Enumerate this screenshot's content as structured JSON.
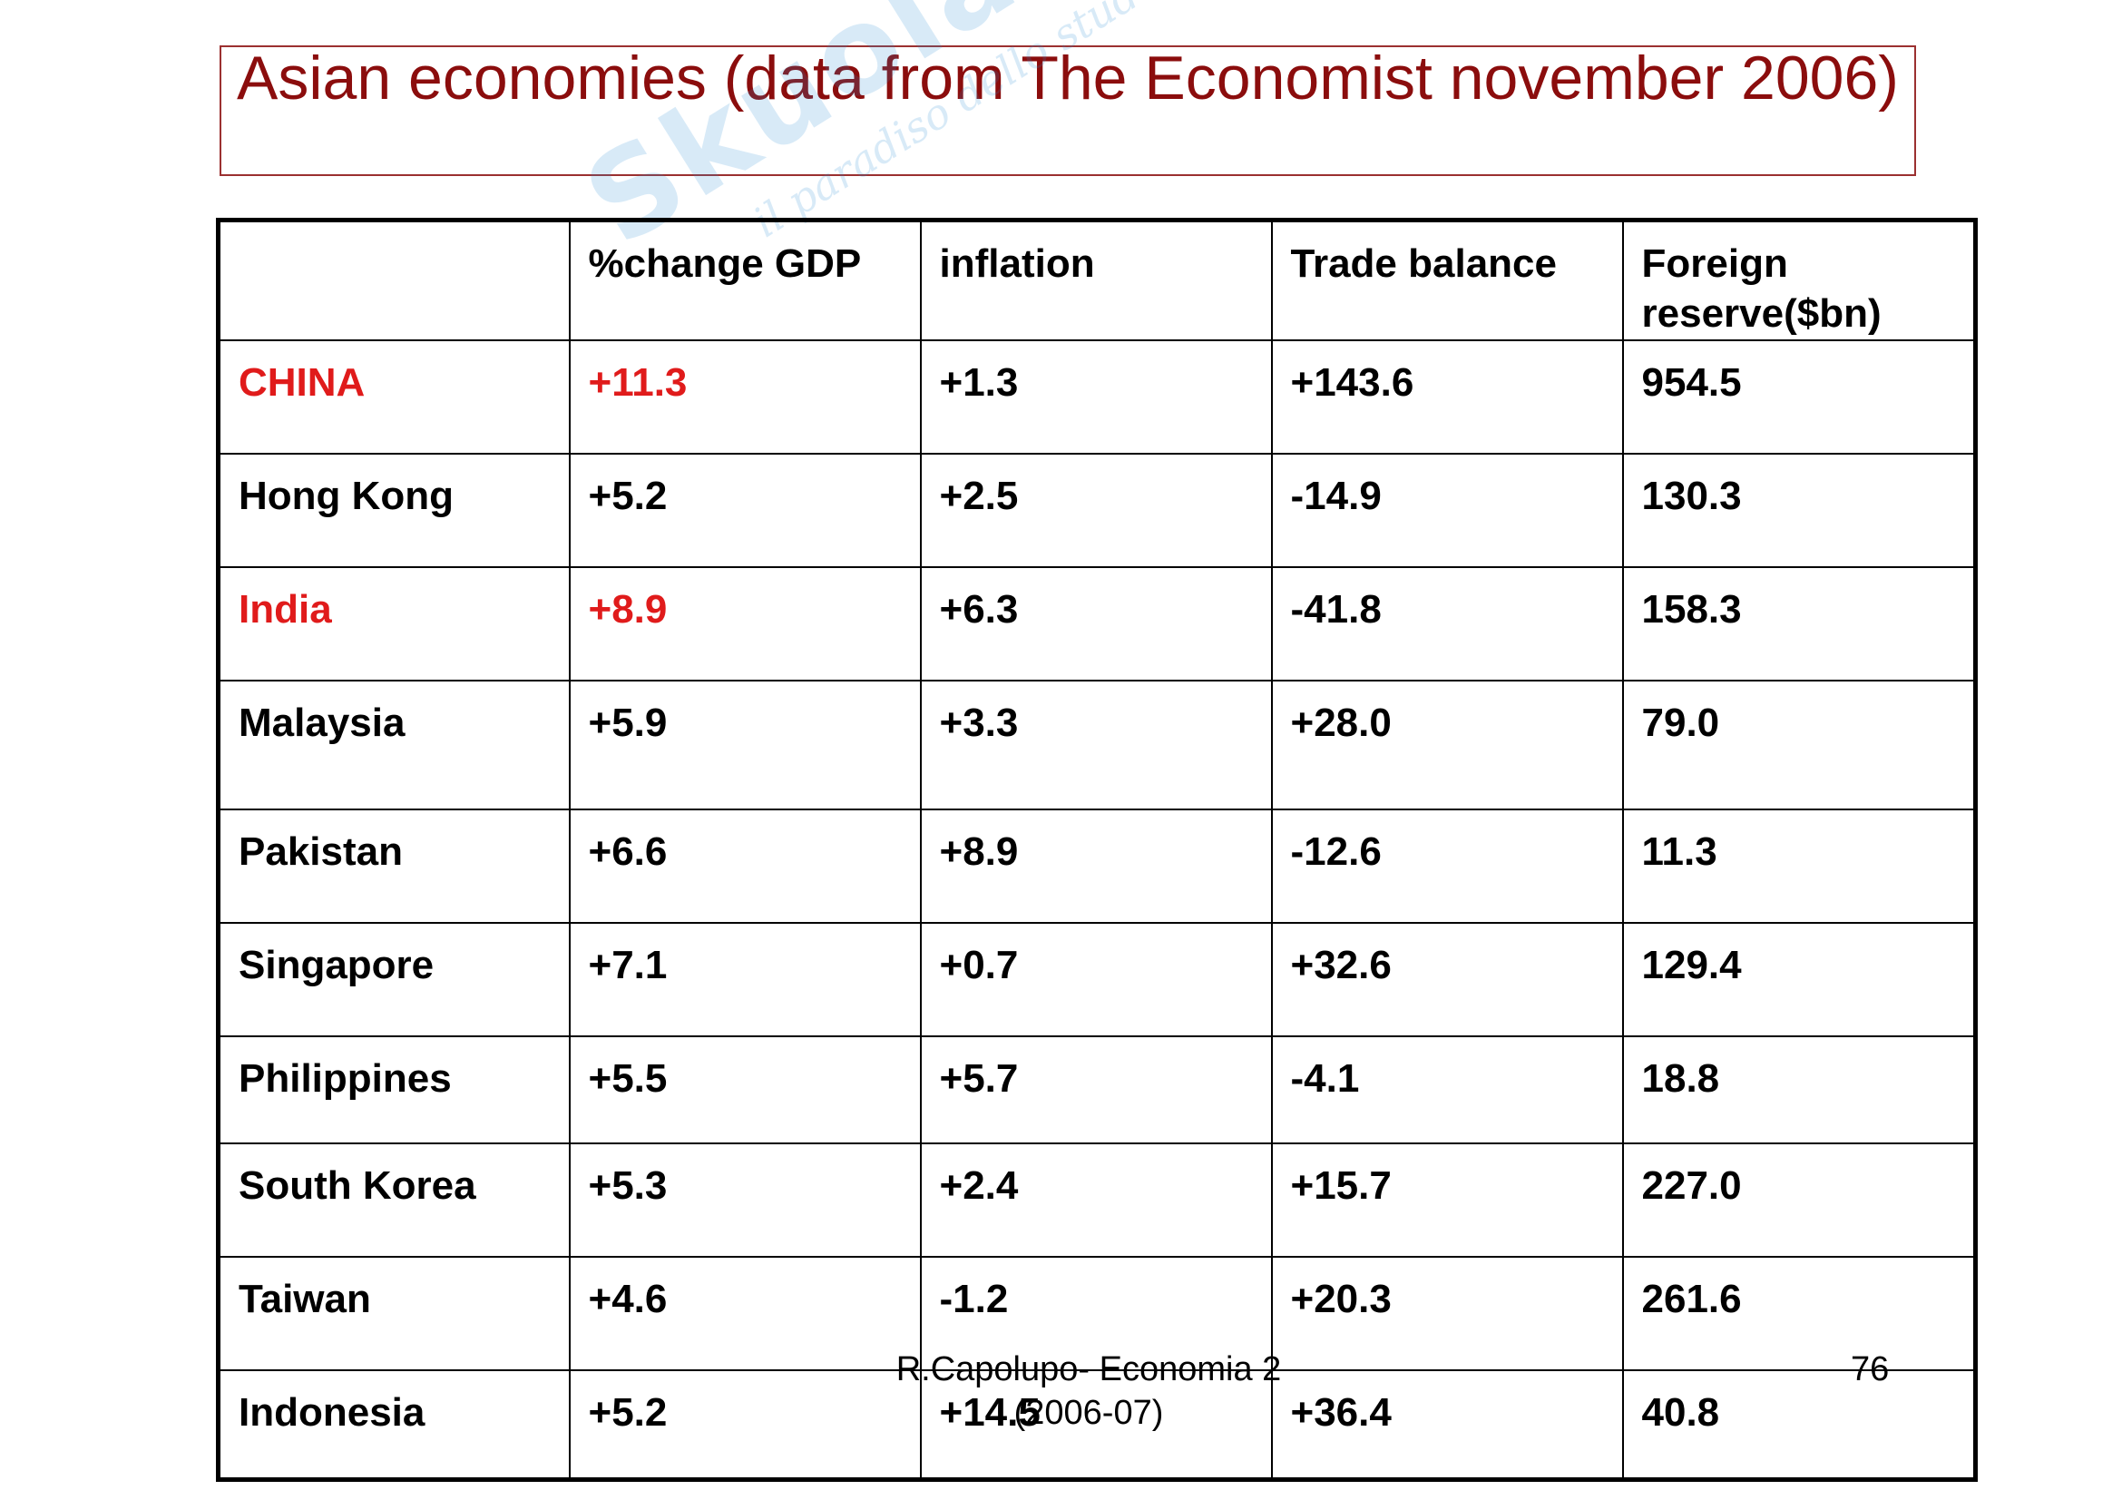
{
  "slide": {
    "title": "Asian economies (data from The Economist november 2006)",
    "watermark": {
      "main": "Skuola.net",
      "sub": "il paradiso dello studente"
    },
    "footer": {
      "line1": "R.Capolupo- Economia 2",
      "line2": "(2006-07)",
      "page_number": "76"
    },
    "colors": {
      "title": "#8b0d0d",
      "title_border": "#9b3030",
      "highlight": "#e01b1b",
      "watermark": "#2b8fd6"
    }
  },
  "table": {
    "headers": [
      "",
      "%change GDP",
      "inflation",
      "Trade balance",
      "Foreign reserve($bn)"
    ],
    "rows": [
      {
        "country": "CHINA",
        "gdp": "+11.3",
        "inflation": "+1.3",
        "trade": "+143.6",
        "reserve": "954.5",
        "highlight": true
      },
      {
        "country": "Hong Kong",
        "gdp": "+5.2",
        "inflation": "+2.5",
        "trade": "-14.9",
        "reserve": "130.3",
        "highlight": false
      },
      {
        "country": "India",
        "gdp": "+8.9",
        "inflation": "+6.3",
        "trade": "-41.8",
        "reserve": "158.3",
        "highlight": true
      },
      {
        "country": "Malaysia",
        "gdp": "+5.9",
        "inflation": "+3.3",
        "trade": "+28.0",
        "reserve": "79.0",
        "highlight": false
      },
      {
        "country": "Pakistan",
        "gdp": "+6.6",
        "inflation": "+8.9",
        "trade": "-12.6",
        "reserve": "11.3",
        "highlight": false
      },
      {
        "country": "Singapore",
        "gdp": "+7.1",
        "inflation": "+0.7",
        "trade": "+32.6",
        "reserve": "129.4",
        "highlight": false
      },
      {
        "country": "Philippines",
        "gdp": "+5.5",
        "inflation": "+5.7",
        "trade": "-4.1",
        "reserve": "18.8",
        "highlight": false
      },
      {
        "country": "South Korea",
        "gdp": "+5.3",
        "inflation": "+2.4",
        "trade": "+15.7",
        "reserve": "227.0",
        "highlight": false
      },
      {
        "country": "Taiwan",
        "gdp": "+4.6",
        "inflation": "-1.2",
        "trade": "+20.3",
        "reserve": "261.6",
        "highlight": false
      },
      {
        "country": "Indonesia",
        "gdp": "+5.2",
        "inflation": "+14.5",
        "trade": "+36.4",
        "reserve": "40.8",
        "highlight": false
      }
    ]
  }
}
